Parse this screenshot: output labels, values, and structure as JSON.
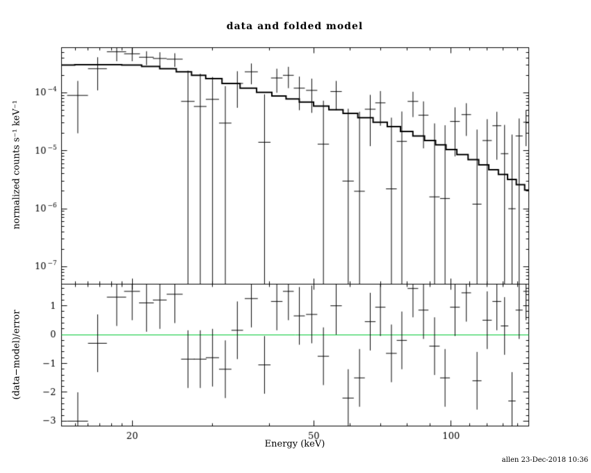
{
  "timestamp": "allen 23-Dec-2018 10:36",
  "chart_data": {
    "type": "line",
    "title": "data and folded model",
    "xlabel": "Energy (keV)",
    "x_scale": "log",
    "xlim": [
      14,
      148
    ],
    "xticks": [
      20,
      50,
      100
    ],
    "x_minor_ticks": [
      15,
      16,
      17,
      18,
      19,
      30,
      40,
      60,
      70,
      80,
      90,
      110,
      120,
      130,
      140
    ],
    "colors": {
      "frame": "#000000",
      "model": "#000000",
      "data": "#000000",
      "zero_line": "#00c832",
      "background": "#ffffff"
    },
    "panels": {
      "top": {
        "ylabel": "normalized counts s⁻¹ keV⁻¹",
        "y_scale": "log",
        "ylim": [
          5e-08,
          0.0006
        ],
        "ytick_exponents": [
          -4,
          -5,
          -6,
          -7
        ]
      },
      "bottom": {
        "ylabel": "(data−model)/error",
        "y_scale": "linear",
        "ylim": [
          -3.17,
          1.75
        ],
        "yticks": [
          1,
          0,
          -1,
          -2,
          -3
        ],
        "zero_line": 0,
        "error_bar_halfheight": 1
      }
    },
    "model": {
      "e": [
        14,
        16,
        18,
        20,
        22,
        24,
        26,
        28,
        30,
        33,
        36,
        39,
        42,
        45,
        48,
        52,
        56,
        60,
        65,
        70,
        75,
        80,
        85,
        90,
        95,
        100,
        106,
        112,
        118,
        124,
        130,
        136,
        142,
        148
      ],
      "v": [
        0.0003,
        0.000305,
        0.000305,
        0.0003,
        0.000285,
        0.00026,
        0.00023,
        0.0002,
        0.000175,
        0.000145,
        0.00012,
        0.000102,
        8.8e-05,
        7.8e-05,
        6.9e-05,
        5.9e-05,
        5.1e-05,
        4.4e-05,
        3.7e-05,
        3.1e-05,
        2.6e-05,
        2.15e-05,
        1.8e-05,
        1.5e-05,
        1.26e-05,
        1.05e-05,
        8.6e-06,
        7e-06,
        5.7e-06,
        4.7e-06,
        3.9e-06,
        3.2e-06,
        2.6e-06,
        2.1e-06
      ]
    },
    "points": [
      {
        "e": 15.2,
        "de": 0.8,
        "y": 9e-05,
        "yerr": 7e-05,
        "chi": -3.0
      },
      {
        "e": 16.8,
        "de": 0.8,
        "y": 0.00026,
        "yerr": 0.00015,
        "chi": -0.3
      },
      {
        "e": 18.5,
        "de": 0.9,
        "y": 0.00051,
        "yerr": 0.00016,
        "chi": 1.3
      },
      {
        "e": 20.0,
        "de": 0.8,
        "y": 0.00047,
        "yerr": 0.00012,
        "chi": 1.5
      },
      {
        "e": 21.5,
        "de": 0.8,
        "y": 0.00041,
        "yerr": 0.00011,
        "chi": 1.1
      },
      {
        "e": 23.0,
        "de": 0.8,
        "y": 0.00039,
        "yerr": 0.00011,
        "chi": 1.2
      },
      {
        "e": 24.8,
        "de": 1.0,
        "y": 0.00038,
        "yerr": 0.0001,
        "chi": 1.4
      },
      {
        "e": 26.5,
        "de": 0.9,
        "y": 7.1e-05,
        "yerr": 0.00017,
        "chi": -0.85
      },
      {
        "e": 28.2,
        "de": 0.9,
        "y": 5.8e-05,
        "yerr": 0.000155,
        "chi": -0.85
      },
      {
        "e": 30.0,
        "de": 1.0,
        "y": 7.7e-05,
        "yerr": 0.00011,
        "chi": -0.8
      },
      {
        "e": 32.0,
        "de": 1.0,
        "y": 3e-05,
        "yerr": 0.0001,
        "chi": -1.2
      },
      {
        "e": 34.0,
        "de": 1.0,
        "y": 0.000145,
        "yerr": 9e-05,
        "chi": 0.15
      },
      {
        "e": 36.5,
        "de": 1.2,
        "y": 0.00023,
        "yerr": 9e-05,
        "chi": 1.25
      },
      {
        "e": 39.0,
        "de": 1.2,
        "y": 1.4e-05,
        "yerr": 8e-05,
        "chi": -1.05
      },
      {
        "e": 41.5,
        "de": 1.2,
        "y": 0.00018,
        "yerr": 8e-05,
        "chi": 1.15
      },
      {
        "e": 44.0,
        "de": 1.2,
        "y": 0.0002,
        "yerr": 8e-05,
        "chi": 1.5
      },
      {
        "e": 46.5,
        "de": 1.3,
        "y": 0.00012,
        "yerr": 7e-05,
        "chi": 0.65
      },
      {
        "e": 49.5,
        "de": 1.4,
        "y": 0.00011,
        "yerr": 6.5e-05,
        "chi": 0.7
      },
      {
        "e": 52.5,
        "de": 1.5,
        "y": 1.3e-05,
        "yerr": 6e-05,
        "chi": -0.75
      },
      {
        "e": 56.0,
        "de": 1.6,
        "y": 0.000105,
        "yerr": 5.5e-05,
        "chi": 1.0
      },
      {
        "e": 59.5,
        "de": 1.7,
        "y": 3e-06,
        "yerr": 5e-05,
        "chi": -2.2
      },
      {
        "e": 63.0,
        "de": 1.7,
        "y": 2e-06,
        "yerr": 4.5e-05,
        "chi": -1.5
      },
      {
        "e": 66.5,
        "de": 1.8,
        "y": 5.2e-05,
        "yerr": 4e-05,
        "chi": 0.45
      },
      {
        "e": 70.0,
        "de": 1.8,
        "y": 6.7e-05,
        "yerr": 4e-05,
        "chi": 0.95
      },
      {
        "e": 74.0,
        "de": 2.0,
        "y": 2.2e-06,
        "yerr": 3.5e-05,
        "chi": -0.65
      },
      {
        "e": 78.0,
        "de": 2.0,
        "y": 1.45e-05,
        "yerr": 3.3e-05,
        "chi": -0.2
      },
      {
        "e": 82.5,
        "de": 2.2,
        "y": 7.1e-05,
        "yerr": 3.3e-05,
        "chi": 1.6
      },
      {
        "e": 87.0,
        "de": 2.2,
        "y": 4.1e-05,
        "yerr": 3e-05,
        "chi": 0.85
      },
      {
        "e": 92.0,
        "de": 2.4,
        "y": 1.6e-06,
        "yerr": 2.8e-05,
        "chi": -0.4
      },
      {
        "e": 97.0,
        "de": 2.4,
        "y": 1.5e-06,
        "yerr": 2.6e-05,
        "chi": -1.5
      },
      {
        "e": 102,
        "de": 2.5,
        "y": 3.2e-05,
        "yerr": 2.4e-05,
        "chi": 0.95
      },
      {
        "e": 108,
        "de": 2.6,
        "y": 4.2e-05,
        "yerr": 2.4e-05,
        "chi": 1.45
      },
      {
        "e": 114,
        "de": 2.6,
        "y": 1.2e-06,
        "yerr": 2.2e-05,
        "chi": -1.6
      },
      {
        "e": 120,
        "de": 2.8,
        "y": 1.5e-05,
        "yerr": 2e-05,
        "chi": 0.5
      },
      {
        "e": 126,
        "de": 2.8,
        "y": 2.7e-05,
        "yerr": 2e-05,
        "chi": 1.15
      },
      {
        "e": 131,
        "de": 2.5,
        "y": 8.9e-06,
        "yerr": 1.9e-05,
        "chi": 0.3
      },
      {
        "e": 136,
        "de": 2.5,
        "y": 1e-06,
        "yerr": 1.8e-05,
        "chi": -2.3
      },
      {
        "e": 141,
        "de": 2.5,
        "y": 1.8e-05,
        "yerr": 1.8e-05,
        "chi": 0.85
      },
      {
        "e": 146,
        "de": 2.0,
        "y": 3.1e-05,
        "yerr": 1.9e-05,
        "chi": 1.5
      }
    ]
  }
}
